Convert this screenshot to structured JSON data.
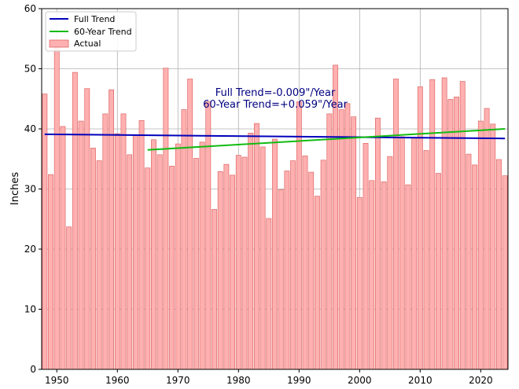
{
  "chart_data": {
    "type": "bar",
    "ylabel": "Inches",
    "xlabel": "",
    "ylim": [
      0,
      60
    ],
    "xlim": [
      1947.5,
      2024.5
    ],
    "y_ticks": [
      "0",
      "10",
      "20",
      "30",
      "40",
      "50",
      "60"
    ],
    "x_ticks": [
      "1950",
      "1960",
      "1970",
      "1980",
      "1990",
      "2000",
      "2010",
      "2020"
    ],
    "grid": true,
    "legend_position": "top-left",
    "legend": [
      {
        "label": "Full Trend",
        "kind": "line",
        "color": "#0000bb"
      },
      {
        "label": "60-Year Trend",
        "kind": "line",
        "color": "#11bb11"
      },
      {
        "label": "Actual",
        "kind": "bar",
        "color": "#ffb0b0"
      }
    ],
    "annotations": [
      {
        "text": "Full Trend=-0.009\"/Year"
      },
      {
        "text": "60-Year Trend=+0.059\"/Year"
      }
    ],
    "annotation_color": "#000080",
    "bar_fill": "#ffb0b0",
    "bar_edge": "#dd6666",
    "years": [
      1948,
      1949,
      1950,
      1951,
      1952,
      1953,
      1954,
      1955,
      1956,
      1957,
      1958,
      1959,
      1960,
      1961,
      1962,
      1963,
      1964,
      1965,
      1966,
      1967,
      1968,
      1969,
      1970,
      1971,
      1972,
      1973,
      1974,
      1975,
      1976,
      1977,
      1978,
      1979,
      1980,
      1981,
      1982,
      1983,
      1984,
      1985,
      1986,
      1987,
      1988,
      1989,
      1990,
      1991,
      1992,
      1993,
      1994,
      1995,
      1996,
      1997,
      1998,
      1999,
      2000,
      2001,
      2002,
      2003,
      2004,
      2005,
      2006,
      2007,
      2008,
      2009,
      2010,
      2011,
      2012,
      2013,
      2014,
      2015,
      2016,
      2017,
      2018,
      2019,
      2020,
      2021,
      2022,
      2023,
      2024
    ],
    "values": [
      45.8,
      32.4,
      54.2,
      40.4,
      23.7,
      49.4,
      41.3,
      46.7,
      36.8,
      34.7,
      42.5,
      46.5,
      39.2,
      42.5,
      35.7,
      38.9,
      41.4,
      33.5,
      38.2,
      35.7,
      50.1,
      33.8,
      37.5,
      43.2,
      48.3,
      35.1,
      37.8,
      44.5,
      26.6,
      32.9,
      34.1,
      32.3,
      35.6,
      35.3,
      39.3,
      40.9,
      37.0,
      25.1,
      38.3,
      29.9,
      33.0,
      34.7,
      44.5,
      35.5,
      32.8,
      28.8,
      34.8,
      42.5,
      50.6,
      43.2,
      44.2,
      42.0,
      28.6,
      37.6,
      31.4,
      41.8,
      31.2,
      35.4,
      48.3,
      38.7,
      30.7,
      38.5,
      47.0,
      36.4,
      48.2,
      32.6,
      48.5,
      44.9,
      45.3,
      47.9,
      35.8,
      34.0,
      41.3,
      43.4,
      40.8,
      34.9,
      32.2
    ],
    "series": [
      {
        "name": "Full Trend",
        "type": "line",
        "color": "#0000bb",
        "x": [
          1948,
          2024
        ],
        "y": [
          39.1,
          38.4
        ]
      },
      {
        "name": "60-Year Trend",
        "type": "line",
        "color": "#11bb11",
        "x": [
          1965,
          2024
        ],
        "y": [
          36.5,
          40.0
        ]
      }
    ]
  }
}
